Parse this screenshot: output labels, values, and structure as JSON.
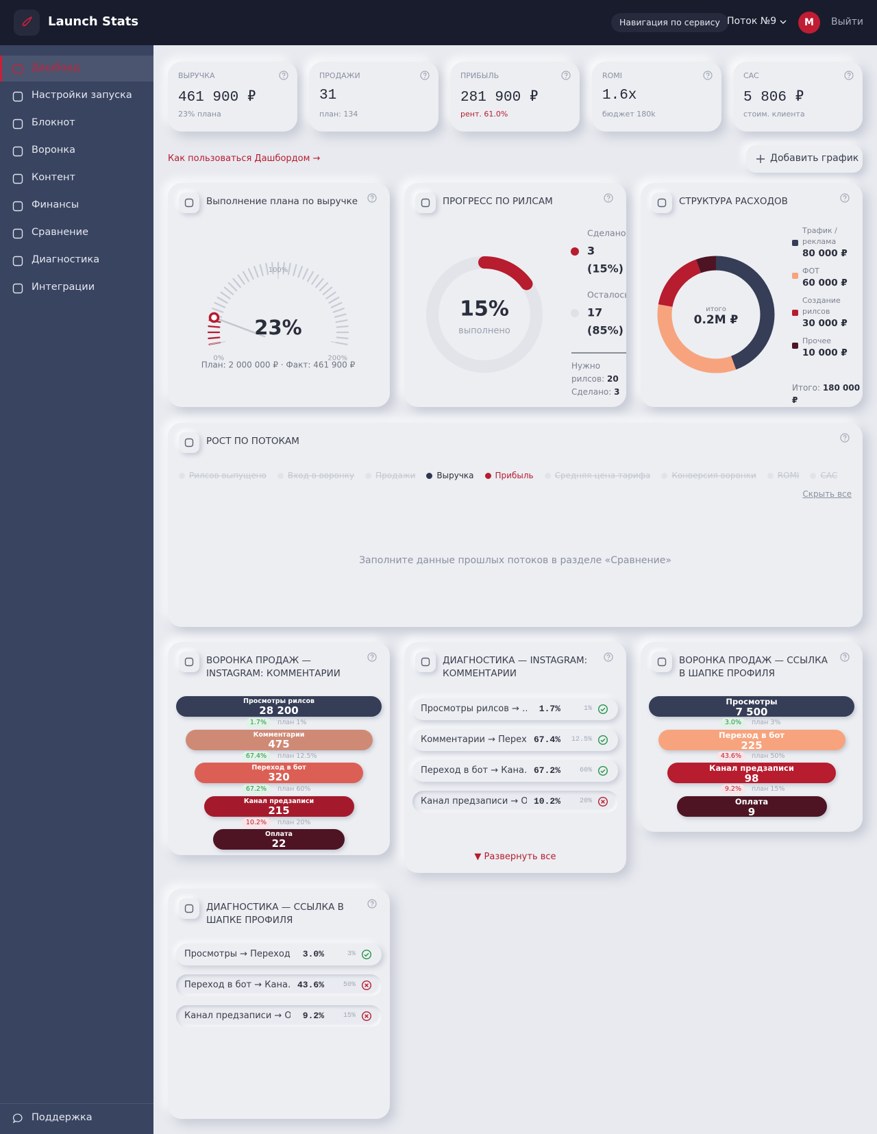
{
  "header": {
    "brand": "Launch Stats",
    "nav_button": "Навигация по сервису",
    "stream": "Поток №9",
    "avatar": "M",
    "logout": "Выйти"
  },
  "sidebar": {
    "items": [
      "Дашборд",
      "Настройки запуска",
      "Блокнот",
      "Воронка",
      "Контент",
      "Финансы",
      "Сравнение",
      "Диагностика",
      "Интеграции"
    ],
    "support": "Поддержка"
  },
  "kpis": [
    {
      "label": "ВЫРУЧКА",
      "value": "461 900 ₽",
      "note": "23% плана"
    },
    {
      "label": "ПРОДАЖИ",
      "value": "31",
      "note": "план: 134"
    },
    {
      "label": "ПРИБЫЛЬ",
      "value": "281 900 ₽",
      "note": "рент. 61.0%",
      "note_color": "#b71c2f"
    },
    {
      "label": "ROMI",
      "value": "1.6x",
      "note": "бюджет 180k"
    },
    {
      "label": "CAC",
      "value": "5 806 ₽",
      "note": "стоим. клиента"
    }
  ],
  "help_link": "Как пользоваться Дашбордом →",
  "add_chart": "Добавить график",
  "plan_card": {
    "title": "Выполнение плана по выручке",
    "gauge": {
      "value": 23,
      "label": "23%"
    },
    "scale": [
      {
        "value": 0,
        "label": "0%"
      },
      {
        "value": 100,
        "label": "100%"
      },
      {
        "value": 200,
        "label": "200%"
      }
    ],
    "caption": "План: 2 000 000 ₽ · Факт: 461 900 ₽"
  },
  "reels_card": {
    "title": "ПРОГРЕСС ПО РИЛСАМ",
    "center": "15%",
    "center_sub": "выполнено",
    "legend": [
      {
        "name": "Сделано",
        "value": 3,
        "share": "(15%)",
        "color": "#b71c2f"
      },
      {
        "name": "Осталось",
        "value": 17,
        "share": "(85%)",
        "color": "#dfe1e6"
      }
    ],
    "need_label": "Нужно рилсов:",
    "need_value": "20",
    "done_label": "Сделано:",
    "done_value": "3"
  },
  "expenses_card": {
    "title": "СТРУКТУРА РАСХОДОВ",
    "center_sub": "итого",
    "center": "0.2M ₽",
    "items": [
      {
        "name": "Трафик / реклама",
        "value": {
          "value": 80000,
          "label": "80 000 ₽"
        },
        "color": "#353d57"
      },
      {
        "name": "ФОТ",
        "value": {
          "value": 60000,
          "label": "60 000 ₽"
        },
        "color": "#f7a47e"
      },
      {
        "name": "Создание рилсов",
        "value": {
          "value": 30000,
          "label": "30 000 ₽"
        },
        "color": "#b71c2f"
      },
      {
        "name": "Прочее",
        "value": {
          "value": 10000,
          "label": "10 000 ₽"
        },
        "color": "#4e1424"
      }
    ],
    "total_label": "Итого:",
    "total": "180 000 ₽"
  },
  "growth_card": {
    "title": "РОСТ ПО ПОТОКАМ",
    "metrics": [
      {
        "name": "Рилсов выпущено",
        "active": false,
        "color": "#e1e3e8"
      },
      {
        "name": "Вход в воронку",
        "active": false,
        "color": "#e1e3e8"
      },
      {
        "name": "Продажи",
        "active": false,
        "color": "#e1e3e8"
      },
      {
        "name": "Выручка",
        "active": true,
        "color": "#2f3650"
      },
      {
        "name": "Прибыль",
        "active": true,
        "color": "#b71c2f"
      },
      {
        "name": "Средняя цена тарифа",
        "active": false,
        "color": "#e1e3e8"
      },
      {
        "name": "Конверсия воронки",
        "active": false,
        "color": "#e1e3e8"
      },
      {
        "name": "ROMI",
        "active": false,
        "color": "#e1e3e8"
      },
      {
        "name": "CAC",
        "active": false,
        "color": "#e1e3e8"
      }
    ],
    "hide_all": "Скрыть все",
    "empty": "Заполните данные прошлых потоков в разделе «Сравнение»"
  },
  "funnels": [
    {
      "title": "ВОРОНКА ПРОДАЖ — INSTAGRAM: КОММЕНТАРИИ",
      "stages": [
        {
          "name": "Просмотры рилсов",
          "value": "28 200",
          "color": "#353d57"
        },
        {
          "name": "Комментарии",
          "value": "475",
          "color": "#cf8a76"
        },
        {
          "name": "Переход в бот",
          "value": "320",
          "color": "#dc5f55"
        },
        {
          "name": "Канал предзаписи",
          "value": "215",
          "color": "#a41a2c"
        },
        {
          "name": "Оплата",
          "value": "22",
          "color": "#4e1424"
        }
      ],
      "steps": [
        {
          "rate": "1.7%",
          "plan": "план 1%",
          "ok": true
        },
        {
          "rate": "67.4%",
          "plan": "план 12.5%",
          "ok": true
        },
        {
          "rate": "67.2%",
          "plan": "план 60%",
          "ok": true
        },
        {
          "rate": "10.2%",
          "plan": "план 20%",
          "ok": false
        }
      ]
    },
    {
      "title": "ВОРОНКА ПРОДАЖ — ССЫЛКА В ШАПКЕ ПРОФИЛЯ",
      "stages": [
        {
          "name": "Просмотры",
          "value": "7 500",
          "color": "#353d57"
        },
        {
          "name": "Переход в бот",
          "value": "225",
          "color": "#f7a47e"
        },
        {
          "name": "Канал предзаписи",
          "value": "98",
          "color": "#b71c2f"
        },
        {
          "name": "Оплата",
          "value": "9",
          "color": "#4e1424"
        }
      ],
      "steps": [
        {
          "rate": "3.0%",
          "plan": "план 3%",
          "ok": true
        },
        {
          "rate": "43.6%",
          "plan": "план 50%",
          "ok": false
        },
        {
          "rate": "9.2%",
          "plan": "план 15%",
          "ok": false
        }
      ]
    }
  ],
  "diagnostics": [
    {
      "title": "ДИАГНОСТИКА — INSTAGRAM: КОММЕНТАРИИ",
      "rows": [
        {
          "name": "Просмотры рилсов → …",
          "rate": "1.7%",
          "plan": "1%",
          "ok": true
        },
        {
          "name": "Комментарии → Перех…",
          "rate": "67.4%",
          "plan": "12.5%",
          "ok": true
        },
        {
          "name": "Переход в бот → Кана…",
          "rate": "67.2%",
          "plan": "60%",
          "ok": true
        },
        {
          "name": "Канал предзаписи → О…",
          "rate": "10.2%",
          "plan": "20%",
          "ok": false
        }
      ],
      "expand": "▼ Развернуть все"
    },
    {
      "title": "ДИАГНОСТИКА — ССЫЛКА В ШАПКЕ ПРОФИЛЯ",
      "rows": [
        {
          "name": "Просмотры → Переход…",
          "rate": "3.0%",
          "plan": "3%",
          "ok": true
        },
        {
          "name": "Переход в бот → Кана…",
          "rate": "43.6%",
          "plan": "50%",
          "ok": false
        },
        {
          "name": "Канал предзаписи → О…",
          "rate": "9.2%",
          "plan": "15%",
          "ok": false
        }
      ]
    }
  ]
}
